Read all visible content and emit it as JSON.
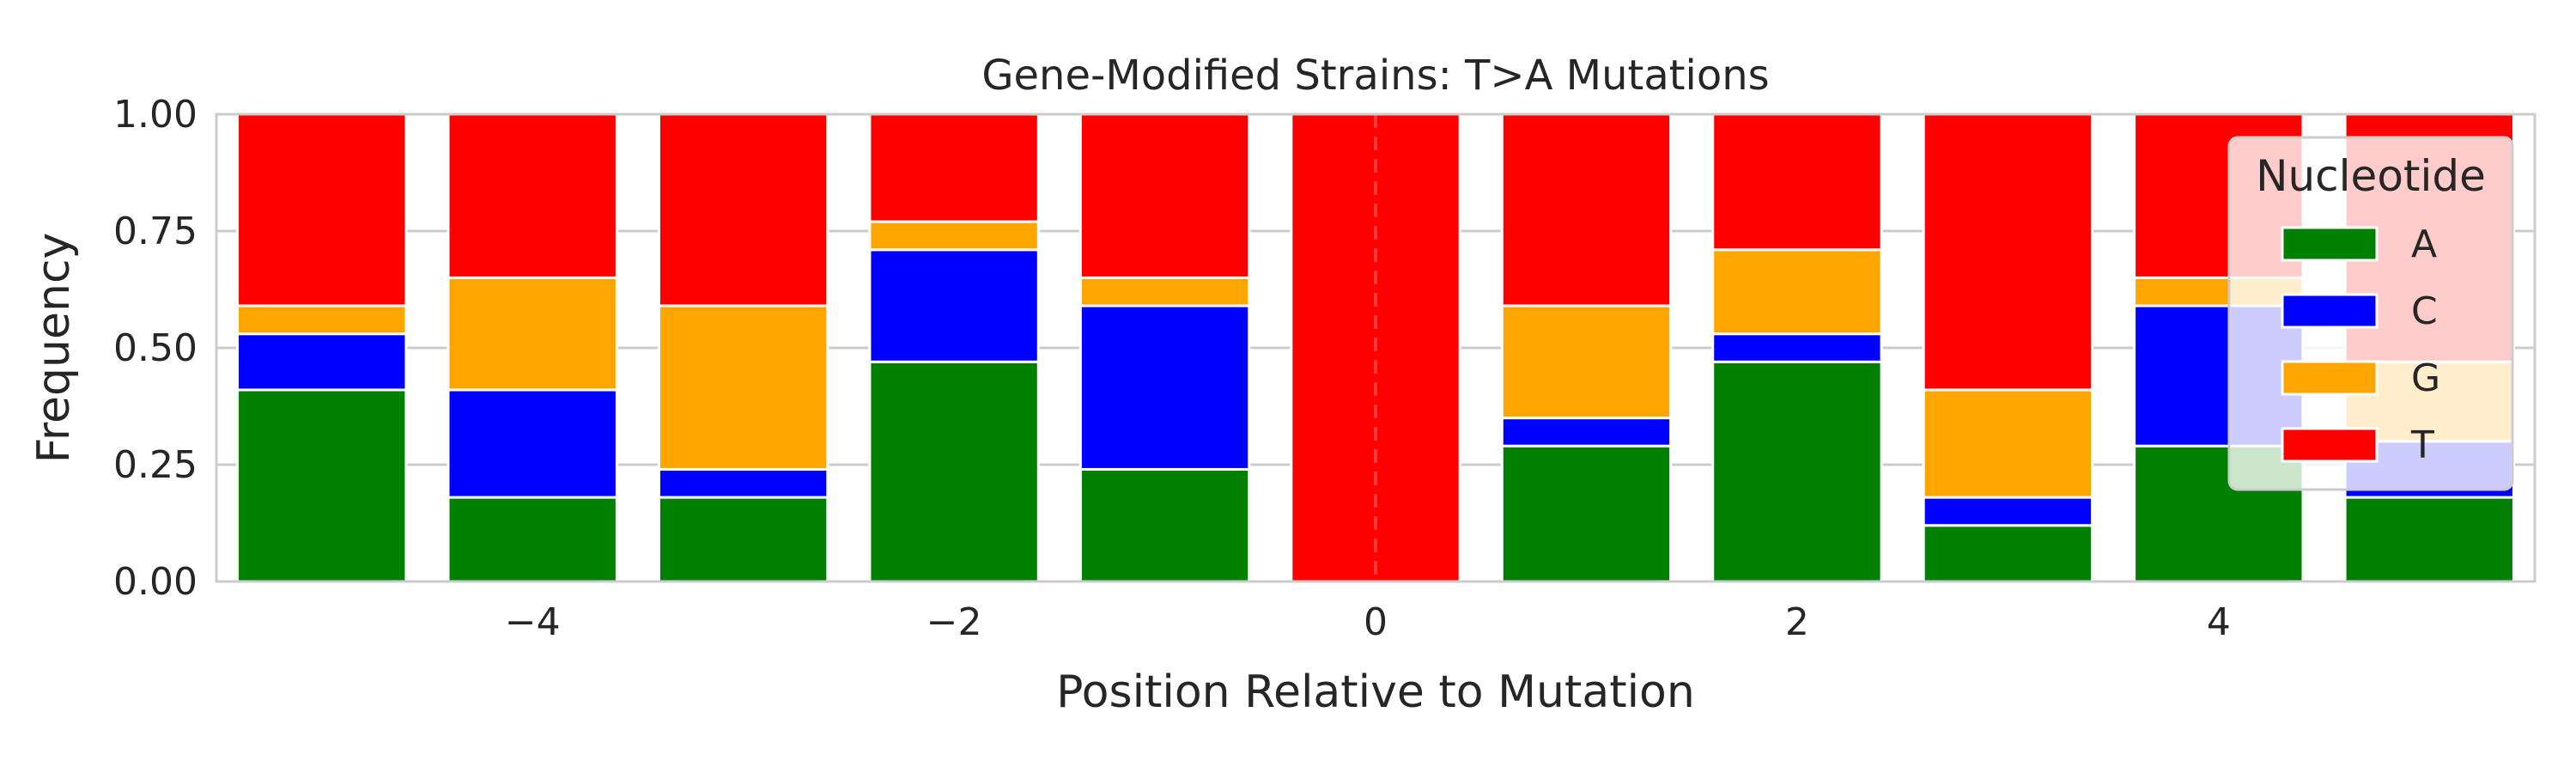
{
  "chart_data": {
    "type": "bar",
    "stacked": true,
    "title": "Gene-Modified Strains: T>A Mutations",
    "xlabel": "Position Relative to Mutation",
    "ylabel": "Frequency",
    "x": [
      -5,
      -4,
      -3,
      -2,
      -1,
      0,
      1,
      2,
      3,
      4,
      5
    ],
    "xlim": [
      -5.5,
      5.5
    ],
    "ylim": [
      0,
      1
    ],
    "xticks": [
      -4,
      -2,
      0,
      2,
      4
    ],
    "xtick_labels": [
      "−4",
      "−2",
      "0",
      "2",
      "4"
    ],
    "yticks": [
      0,
      0.25,
      0.5,
      0.75,
      1.0
    ],
    "ytick_labels": [
      "0.00",
      "0.25",
      "0.50",
      "0.75",
      "1.00"
    ],
    "grid": true,
    "reference_line": {
      "x": 0,
      "style": "dashed",
      "color": "#ff5555"
    },
    "legend": {
      "title": "Nucleotide",
      "placement": "upper right"
    },
    "series": [
      {
        "name": "A",
        "color": "#008000",
        "values": [
          0.41,
          0.18,
          0.18,
          0.47,
          0.24,
          0.0,
          0.29,
          0.47,
          0.12,
          0.29,
          0.18
        ]
      },
      {
        "name": "C",
        "color": "#0000ff",
        "values": [
          0.12,
          0.23,
          0.06,
          0.24,
          0.35,
          0.0,
          0.06,
          0.06,
          0.06,
          0.3,
          0.12
        ]
      },
      {
        "name": "G",
        "color": "#ffa500",
        "values": [
          0.06,
          0.24,
          0.35,
          0.06,
          0.06,
          0.0,
          0.24,
          0.18,
          0.23,
          0.06,
          0.17
        ]
      },
      {
        "name": "T",
        "color": "#ff0000",
        "values": [
          0.41,
          0.35,
          0.41,
          0.23,
          0.35,
          1.0,
          0.41,
          0.29,
          0.59,
          0.35,
          0.53
        ]
      }
    ]
  }
}
